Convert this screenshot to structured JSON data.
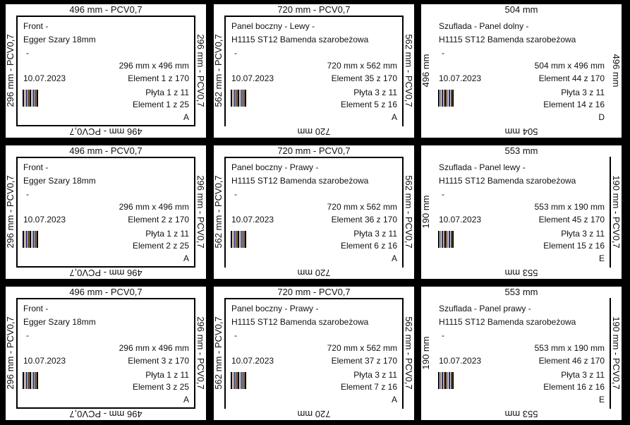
{
  "labels": [
    {
      "top": "496 mm - PCV0,7",
      "bottom": "496 mm - PCV0,7",
      "left": "296 mm - PCV0,7",
      "right": "296 mm - PCV0,7",
      "line1": "Front -",
      "line2": "Egger Szary 18mm",
      "line3": "-",
      "size": "296 mm x 496 mm",
      "date": "10.07.2023",
      "element_total": "Element 1 z 170",
      "plate": "Płyta 1 z 11",
      "element_group": "Element 1 z 25",
      "code": "A",
      "edges": {
        "top": true,
        "bottom": true,
        "left": true,
        "right": true
      }
    },
    {
      "top": "720 mm - PCV0,7",
      "bottom": "720 mm",
      "left": "562 mm - PCV0,7",
      "right": "562 mm - PCV0,7",
      "line1": "Panel boczny - Lewy -",
      "line2": "H1115 ST12 Bamenda szarobeżowa",
      "line3": "-",
      "size": "720 mm x 562 mm",
      "date": "10.07.2023",
      "element_total": "Element 35 z 170",
      "plate": "Płyta 3 z 11",
      "element_group": "Element 5 z 16",
      "code": "A",
      "edges": {
        "top": true,
        "bottom": false,
        "left": true,
        "right": true
      }
    },
    {
      "top": "504 mm",
      "bottom": "504 mm",
      "left": "496 mm",
      "right": "496 mm",
      "line1": "Szuflada - Panel dolny -",
      "line2": "H1115 ST12 Bamenda szarobeżowa",
      "line3": "-",
      "size": "504 mm x 496 mm",
      "date": "10.07.2023",
      "element_total": "Element 44 z 170",
      "plate": "Płyta 3 z 11",
      "element_group": "Element 14 z 16",
      "code": "D",
      "edges": {
        "top": false,
        "bottom": false,
        "left": false,
        "right": false
      }
    },
    {
      "top": "496 mm - PCV0,7",
      "bottom": "496 mm - PCV0,7",
      "left": "296 mm - PCV0,7",
      "right": "296 mm - PCV0,7",
      "line1": "Front -",
      "line2": "Egger Szary 18mm",
      "line3": "-",
      "size": "296 mm x 496 mm",
      "date": "10.07.2023",
      "element_total": "Element 2 z 170",
      "plate": "Płyta 1 z 11",
      "element_group": "Element 2 z 25",
      "code": "A",
      "edges": {
        "top": true,
        "bottom": true,
        "left": true,
        "right": true
      }
    },
    {
      "top": "720 mm - PCV0,7",
      "bottom": "720 mm",
      "left": "562 mm - PCV0,7",
      "right": "562 mm - PCV0,7",
      "line1": "Panel boczny - Prawy -",
      "line2": "H1115 ST12 Bamenda szarobeżowa",
      "line3": "-",
      "size": "720 mm x 562 mm",
      "date": "10.07.2023",
      "element_total": "Element 36 z 170",
      "plate": "Płyta 3 z 11",
      "element_group": "Element 6 z 16",
      "code": "A",
      "edges": {
        "top": true,
        "bottom": false,
        "left": true,
        "right": true
      }
    },
    {
      "top": "553 mm",
      "bottom": "553 mm",
      "left": "190 mm",
      "right": "190 mm - PCV0,7",
      "line1": "Szuflada - Panel lewy -",
      "line2": "H1115 ST12 Bamenda szarobeżowa",
      "line3": "-",
      "size": "553 mm x 190 mm",
      "date": "10.07.2023",
      "element_total": "Element 45 z 170",
      "plate": "Płyta 3 z 11",
      "element_group": "Element 15 z 16",
      "code": "E",
      "edges": {
        "top": false,
        "bottom": false,
        "left": false,
        "right": true
      }
    },
    {
      "top": "496 mm - PCV0,7",
      "bottom": "496 mm - PCV0,7",
      "left": "296 mm - PCV0,7",
      "right": "296 mm - PCV0,7",
      "line1": "Front -",
      "line2": "Egger Szary 18mm",
      "line3": "-",
      "size": "296 mm x 496 mm",
      "date": "10.07.2023",
      "element_total": "Element 3 z 170",
      "plate": "Płyta 1 z 11",
      "element_group": "Element 3 z 25",
      "code": "A",
      "edges": {
        "top": true,
        "bottom": true,
        "left": true,
        "right": true
      }
    },
    {
      "top": "720 mm - PCV0,7",
      "bottom": "720 mm",
      "left": "562 mm - PCV0,7",
      "right": "562 mm - PCV0,7",
      "line1": "Panel boczny - Prawy -",
      "line2": "H1115 ST12 Bamenda szarobeżowa",
      "line3": "-",
      "size": "720 mm x 562 mm",
      "date": "10.07.2023",
      "element_total": "Element 37 z 170",
      "plate": "Płyta 3 z 11",
      "element_group": "Element 7 z 16",
      "code": "A",
      "edges": {
        "top": true,
        "bottom": false,
        "left": true,
        "right": true
      }
    },
    {
      "top": "553 mm",
      "bottom": "553 mm",
      "left": "190 mm",
      "right": "190 mm - PCV0,7",
      "line1": "Szuflada - Panel prawy -",
      "line2": "H1115 ST12 Bamenda szarobeżowa",
      "line3": "-",
      "size": "553 mm x 190 mm",
      "date": "10.07.2023",
      "element_total": "Element 46 z 170",
      "plate": "Płyta 3 z 11",
      "element_group": "Element 16 z 16",
      "code": "E",
      "edges": {
        "top": false,
        "bottom": false,
        "left": false,
        "right": true
      }
    }
  ]
}
